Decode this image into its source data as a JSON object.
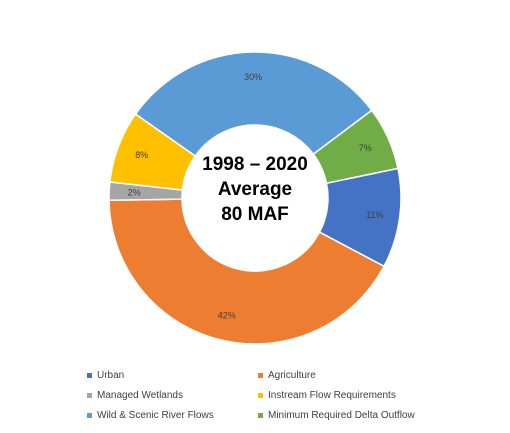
{
  "chart_data": {
    "type": "pie",
    "variant": "donut",
    "center_text": [
      "1998 – 2020",
      "Average",
      "80 MAF"
    ],
    "slices": [
      {
        "name": "Urban",
        "value": 11,
        "label": "11%",
        "color": "#4472C4"
      },
      {
        "name": "Agriculture",
        "value": 42,
        "label": "42%",
        "color": "#ED7D31"
      },
      {
        "name": "Managed Wetlands",
        "value": 2,
        "label": "2%",
        "color": "#A5A5A5"
      },
      {
        "name": "Instream Flow Requirements",
        "value": 8,
        "label": "8%",
        "color": "#FFC000"
      },
      {
        "name": "Wild & Scenic River Flows",
        "value": 30,
        "label": "30%",
        "color": "#5B9BD5"
      },
      {
        "name": "Minimum Required Delta Outflow",
        "value": 7,
        "label": "7%",
        "color": "#70AD47"
      }
    ],
    "legend": {
      "placement": "bottom",
      "columns": 2,
      "items": [
        {
          "label": "Urban",
          "color": "#4472C4"
        },
        {
          "label": "Agriculture",
          "color": "#ED7D31"
        },
        {
          "label": "Managed Wetlands",
          "color": "#A5A5A5"
        },
        {
          "label": "Instream Flow Requirements",
          "color": "#FFC000"
        },
        {
          "label": "Wild & Scenic River Flows",
          "color": "#5B9BD5"
        },
        {
          "label": "Minimum Required Delta Outflow",
          "color": "#70AD47"
        }
      ]
    }
  }
}
